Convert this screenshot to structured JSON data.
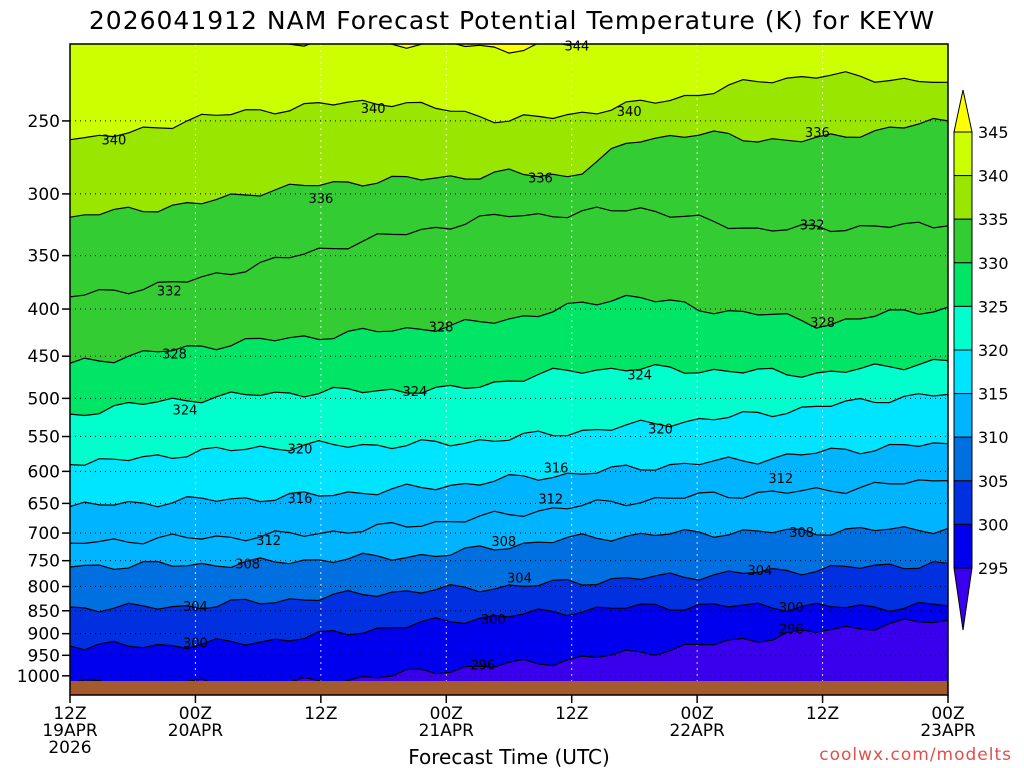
{
  "chart_data": {
    "type": "heatmap",
    "title": "2026041912 NAM Forecast Potential Temperature (K) for KEYW",
    "xlabel": "Forecast Time (UTC)",
    "ylabel": "",
    "y_scale": "log",
    "y_reversed": true,
    "ylim": [
      1013,
      200
    ],
    "y_ticks": [
      250,
      300,
      350,
      400,
      450,
      500,
      550,
      600,
      650,
      700,
      750,
      800,
      850,
      900,
      950,
      1000
    ],
    "x_range_hours": [
      0,
      84
    ],
    "x_ticks": [
      {
        "hour": 0,
        "line1": "12Z",
        "line2": "19APR",
        "line3": "2026"
      },
      {
        "hour": 12,
        "line1": "00Z",
        "line2": "20APR",
        "line3": ""
      },
      {
        "hour": 24,
        "line1": "12Z",
        "line2": "",
        "line3": ""
      },
      {
        "hour": 36,
        "line1": "00Z",
        "line2": "21APR",
        "line3": ""
      },
      {
        "hour": 48,
        "line1": "12Z",
        "line2": "",
        "line3": ""
      },
      {
        "hour": 60,
        "line1": "00Z",
        "line2": "22APR",
        "line3": ""
      },
      {
        "hour": 72,
        "line1": "12Z",
        "line2": "",
        "line3": ""
      },
      {
        "hour": 84,
        "line1": "00Z",
        "line2": "23APR",
        "line3": ""
      }
    ],
    "grid": true,
    "colorbar": {
      "placement": "right",
      "levels": [
        345,
        340,
        335,
        330,
        325,
        320,
        315,
        310,
        305,
        300,
        295
      ],
      "colors": [
        "#ffff00",
        "#ccff00",
        "#99e600",
        "#33cc33",
        "#00e566",
        "#00ffcc",
        "#00e5ff",
        "#00b4ff",
        "#0070e0",
        "#0030e0",
        "#0000ee",
        "#3a00ee"
      ]
    },
    "ground_color": "#a55a2d",
    "isentropes": {
      "x_hours": [
        0,
        6,
        12,
        18,
        24,
        30,
        36,
        42,
        48,
        54,
        60,
        66,
        72,
        78,
        84
      ],
      "lines": [
        {
          "theta": 344,
          "pressure": [
            203,
            203,
            204,
            205,
            205,
            206,
            206,
            209,
            206,
            204,
            203,
            202,
            202,
            203,
            204
          ]
        },
        {
          "theta": 340,
          "pressure": [
            262,
            258,
            248,
            244,
            240,
            238,
            243,
            250,
            246,
            240,
            234,
            226,
            223,
            225,
            227
          ]
        },
        {
          "theta": 336,
          "pressure": [
            318,
            312,
            308,
            298,
            293,
            290,
            288,
            285,
            287,
            262,
            258,
            262,
            262,
            255,
            250
          ]
        },
        {
          "theta": 332,
          "pressure": [
            388,
            380,
            372,
            358,
            345,
            334,
            325,
            316,
            316,
            310,
            320,
            328,
            327,
            325,
            325
          ]
        },
        {
          "theta": 328,
          "pressure": [
            458,
            449,
            440,
            433,
            428,
            422,
            418,
            410,
            398,
            386,
            400,
            404,
            416,
            405,
            398
          ]
        },
        {
          "theta": 324,
          "pressure": [
            520,
            508,
            500,
            495,
            492,
            490,
            490,
            478,
            466,
            464,
            466,
            468,
            470,
            462,
            455
          ]
        },
        {
          "theta": 320,
          "pressure": [
            590,
            582,
            572,
            566,
            562,
            562,
            560,
            552,
            544,
            535,
            528,
            520,
            510,
            500,
            495
          ]
        },
        {
          "theta": 316,
          "pressure": [
            655,
            650,
            645,
            642,
            636,
            630,
            622,
            612,
            604,
            595,
            588,
            582,
            572,
            565,
            560
          ]
        },
        {
          "theta": 312,
          "pressure": [
            718,
            712,
            708,
            706,
            700,
            690,
            680,
            668,
            655,
            646,
            638,
            634,
            630,
            620,
            614
          ]
        },
        {
          "theta": 308,
          "pressure": [
            762,
            758,
            758,
            754,
            748,
            744,
            738,
            722,
            710,
            704,
            700,
            698,
            697,
            694,
            692
          ]
        },
        {
          "theta": 304,
          "pressure": [
            842,
            844,
            840,
            832,
            822,
            812,
            806,
            800,
            792,
            784,
            778,
            772,
            766,
            760,
            755
          ]
        },
        {
          "theta": 300,
          "pressure": [
            928,
            928,
            925,
            918,
            904,
            888,
            872,
            860,
            850,
            842,
            840,
            840,
            842,
            842,
            840
          ]
        },
        {
          "theta": 296,
          "pressure": [
            1020,
            1020,
            1020,
            1020,
            1015,
            1000,
            984,
            972,
            960,
            944,
            928,
            910,
            893,
            880,
            870
          ]
        }
      ]
    },
    "contour_labels": [
      {
        "text": "344",
        "hour": 48.5,
        "p": 207
      },
      {
        "text": "340",
        "hour": 4.2,
        "p": 262
      },
      {
        "text": "340",
        "hour": 29,
        "p": 242
      },
      {
        "text": "340",
        "hour": 53.5,
        "p": 244
      },
      {
        "text": "336",
        "hour": 71.5,
        "p": 257
      },
      {
        "text": "336",
        "hour": 24,
        "p": 303
      },
      {
        "text": "336",
        "hour": 45,
        "p": 288
      },
      {
        "text": "332",
        "hour": 9.5,
        "p": 382
      },
      {
        "text": "332",
        "hour": 71,
        "p": 324
      },
      {
        "text": "328",
        "hour": 10,
        "p": 447
      },
      {
        "text": "328",
        "hour": 35.5,
        "p": 418
      },
      {
        "text": "328",
        "hour": 72,
        "p": 413
      },
      {
        "text": "324",
        "hour": 11,
        "p": 514
      },
      {
        "text": "324",
        "hour": 33,
        "p": 491
      },
      {
        "text": "324",
        "hour": 54.5,
        "p": 471
      },
      {
        "text": "320",
        "hour": 22,
        "p": 567
      },
      {
        "text": "320",
        "hour": 56.5,
        "p": 539
      },
      {
        "text": "316",
        "hour": 22,
        "p": 641
      },
      {
        "text": "316",
        "hour": 46.5,
        "p": 594
      },
      {
        "text": "312",
        "hour": 19,
        "p": 712
      },
      {
        "text": "312",
        "hour": 46,
        "p": 642
      },
      {
        "text": "312",
        "hour": 68,
        "p": 610
      },
      {
        "text": "308",
        "hour": 17,
        "p": 755
      },
      {
        "text": "308",
        "hour": 41.5,
        "p": 714
      },
      {
        "text": "308",
        "hour": 70,
        "p": 698
      },
      {
        "text": "304",
        "hour": 12,
        "p": 840
      },
      {
        "text": "304",
        "hour": 43,
        "p": 782
      },
      {
        "text": "304",
        "hour": 66,
        "p": 768
      },
      {
        "text": "300",
        "hour": 12,
        "p": 920
      },
      {
        "text": "300",
        "hour": 40.5,
        "p": 868
      },
      {
        "text": "300",
        "hour": 69,
        "p": 842
      },
      {
        "text": "296",
        "hour": 39.5,
        "p": 972
      },
      {
        "text": "296",
        "hour": 69,
        "p": 888
      }
    ]
  },
  "credit": "coolwx.com/modelts"
}
